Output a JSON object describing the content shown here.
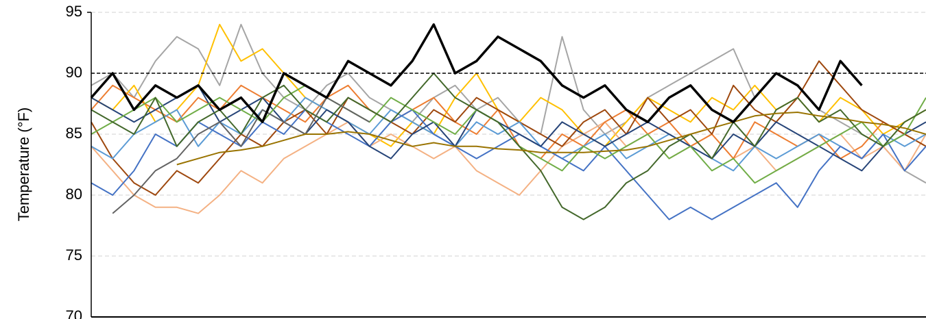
{
  "chart_data": {
    "type": "line",
    "y_label": "Temperature (°F)",
    "ylim": [
      70,
      95
    ],
    "yticks": [
      70,
      75,
      80,
      85,
      90,
      95
    ],
    "grid": true,
    "reference_line": 90,
    "series": [
      {
        "color": "#a5a5a5",
        "values": [
          89,
          90,
          88,
          91,
          93,
          92,
          89,
          94,
          90,
          88,
          87,
          89,
          90,
          88,
          87,
          86,
          88,
          89,
          87,
          88,
          86,
          85,
          93,
          87,
          85,
          86,
          88,
          89,
          90,
          91,
          92,
          88,
          90,
          89,
          87,
          86,
          85,
          84,
          82,
          81
        ]
      },
      {
        "color": "#ffc000",
        "values": [
          88,
          87,
          89,
          86,
          87,
          89,
          94,
          91,
          92,
          90,
          88,
          87,
          86,
          85,
          84,
          86,
          85,
          88,
          90,
          87,
          86,
          88,
          87,
          85,
          84,
          86,
          88,
          87,
          86,
          88,
          87,
          89,
          87,
          88,
          86,
          88,
          87,
          85,
          86,
          87
        ]
      },
      {
        "color": "#f4b183",
        "values": [
          84,
          82,
          80,
          79,
          79,
          78.5,
          80,
          82,
          81,
          83,
          84,
          85,
          86,
          84,
          85,
          84,
          83,
          84,
          82,
          81,
          80,
          82,
          84,
          85,
          86,
          84,
          85,
          83,
          84,
          85,
          83,
          84,
          82,
          83,
          84,
          85,
          83,
          84,
          82,
          85
        ]
      },
      {
        "color": "#ed7d31",
        "values": [
          87,
          89,
          88,
          87,
          86,
          88,
          87,
          89,
          88,
          87,
          86,
          88,
          89,
          87,
          86,
          87,
          88,
          86,
          85,
          87,
          84,
          83,
          85,
          84,
          86,
          87,
          85,
          86,
          84,
          85,
          83,
          86,
          85,
          84,
          85,
          83,
          84,
          86,
          85,
          84
        ]
      },
      {
        "color": "#9e480e",
        "values": [
          86,
          83,
          81,
          80,
          82,
          81,
          83,
          85,
          84,
          86,
          87,
          85,
          88,
          87,
          86,
          85,
          87,
          86,
          88,
          87,
          86,
          85,
          84,
          86,
          87,
          85,
          88,
          86,
          87,
          85,
          89,
          87,
          86,
          88,
          91,
          89,
          87,
          86,
          85,
          84
        ]
      },
      {
        "color": "#5b9bd5",
        "values": [
          84,
          83,
          85,
          86,
          87,
          84,
          86,
          85,
          87,
          86,
          88,
          87,
          86,
          85,
          87,
          86,
          85,
          84,
          86,
          85,
          86,
          84,
          83,
          84,
          85,
          83,
          84,
          85,
          84,
          83,
          82,
          84,
          83,
          84,
          85,
          84,
          83,
          85,
          84,
          85
        ]
      },
      {
        "color": "#4472c4",
        "values": [
          81,
          80,
          82,
          85,
          84,
          86,
          85,
          84,
          86,
          85,
          87,
          86,
          85,
          84,
          86,
          87,
          85,
          84,
          83,
          84,
          85,
          84,
          83,
          82,
          84,
          82,
          80,
          78,
          79,
          78,
          79,
          80,
          81,
          79,
          82,
          84,
          83,
          85,
          82,
          84
        ]
      },
      {
        "color": "#264478",
        "values": [
          88,
          87,
          86,
          87,
          88,
          89,
          86,
          87,
          88,
          86,
          85,
          87,
          86,
          84,
          83,
          85,
          86,
          84,
          87,
          86,
          85,
          84,
          86,
          85,
          84,
          85,
          86,
          85,
          84,
          83,
          85,
          84,
          86,
          85,
          84,
          83,
          82,
          84,
          85,
          86
        ]
      },
      {
        "color": "#70ad47",
        "values": [
          85,
          86,
          87,
          88,
          86,
          87,
          88,
          87,
          86,
          88,
          89,
          88,
          87,
          86,
          88,
          87,
          86,
          85,
          87,
          86,
          84,
          83,
          82,
          84,
          83,
          84,
          85,
          83,
          84,
          82,
          83,
          81,
          82,
          83,
          84,
          85,
          86,
          84,
          85,
          88
        ]
      },
      {
        "color": "#43682b",
        "values": [
          87,
          86,
          85,
          88,
          84,
          86,
          87,
          85,
          88,
          89,
          87,
          86,
          88,
          87,
          86,
          88,
          90,
          88,
          87,
          86,
          84,
          82,
          79,
          78,
          79,
          81,
          82,
          84,
          85,
          83,
          86,
          84,
          87,
          88,
          86,
          87,
          85,
          84,
          86,
          87
        ]
      },
      {
        "color": "#636363",
        "values": [
          null,
          78.5,
          80,
          82,
          83,
          85,
          86,
          84,
          87,
          86,
          85,
          88,
          87,
          86,
          null,
          null,
          null,
          null,
          null,
          null,
          null,
          null,
          null,
          null,
          null,
          null,
          null,
          null,
          null,
          null,
          null,
          null,
          null,
          null,
          null,
          null,
          null,
          null,
          null,
          null
        ]
      },
      {
        "color": "#997300",
        "values": [
          null,
          null,
          null,
          null,
          82.5,
          83,
          83.5,
          83.7,
          84,
          84.5,
          85,
          85,
          85.2,
          85,
          84.5,
          84,
          84.3,
          84,
          84,
          83.8,
          83.7,
          83.5,
          83.5,
          83.5,
          83.6,
          83.7,
          84,
          84.5,
          85,
          85.5,
          86,
          86.5,
          86.7,
          86.8,
          86.5,
          86.3,
          86,
          85.8,
          85.5,
          85
        ]
      },
      {
        "color": "#000000",
        "values": [
          88,
          90,
          87,
          89,
          88,
          89,
          87,
          88,
          86,
          90,
          89,
          88,
          91,
          90,
          89,
          91,
          94,
          90,
          91,
          93,
          92,
          91,
          89,
          88,
          89,
          87,
          86,
          88,
          89,
          87,
          86,
          88,
          90,
          89,
          87,
          91,
          89,
          null,
          null,
          null
        ]
      }
    ]
  }
}
